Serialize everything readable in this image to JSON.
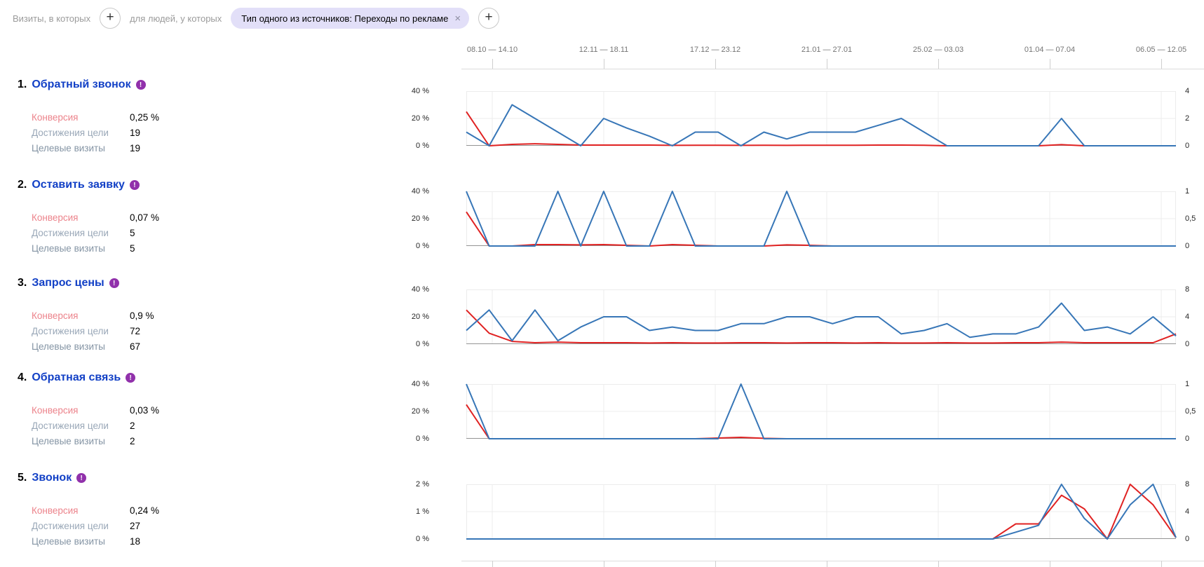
{
  "filter_bar": {
    "visits_prefix": "Визиты, в которых",
    "people_prefix": "для людей, у которых",
    "add_button": "+",
    "chip": {
      "text": "Тип одного из источников: Переходы по рекламе",
      "close": "×"
    }
  },
  "date_axis": {
    "labels": [
      "08.10 — 14.10",
      "12.11 — 18.11",
      "17.12 — 23.12",
      "21.01 — 27.01",
      "25.02 — 03.03",
      "01.04 — 07.04",
      "06.05 — 12.05"
    ]
  },
  "goals": [
    {
      "num": "1.",
      "title": "Обратный звонок",
      "info": "!",
      "conversion_label": "Конверсия",
      "conversion": "0,25 %",
      "reaches_label": "Достижения цели",
      "reaches": "19",
      "visits_label": "Целевые визиты",
      "visits": "19",
      "y_left": [
        "40 %",
        "20 %",
        "0 %"
      ],
      "y_right": [
        "4",
        "2",
        "0"
      ]
    },
    {
      "num": "2.",
      "title": "Оставить заявку",
      "info": "!",
      "conversion_label": "Конверсия",
      "conversion": "0,07 %",
      "reaches_label": "Достижения цели",
      "reaches": "5",
      "visits_label": "Целевые визиты",
      "visits": "5",
      "y_left": [
        "40 %",
        "20 %",
        "0 %"
      ],
      "y_right": [
        "1",
        "0,5",
        "0"
      ]
    },
    {
      "num": "3.",
      "title": "Запрос цены",
      "info": "!",
      "conversion_label": "Конверсия",
      "conversion": "0,9 %",
      "reaches_label": "Достижения цели",
      "reaches": "72",
      "visits_label": "Целевые визиты",
      "visits": "67",
      "y_left": [
        "40 %",
        "20 %",
        "0 %"
      ],
      "y_right": [
        "8",
        "4",
        "0"
      ]
    },
    {
      "num": "4.",
      "title": "Обратная связь",
      "info": "!",
      "conversion_label": "Конверсия",
      "conversion": "0,03 %",
      "reaches_label": "Достижения цели",
      "reaches": "2",
      "visits_label": "Целевые визиты",
      "visits": "2",
      "y_left": [
        "40 %",
        "20 %",
        "0 %"
      ],
      "y_right": [
        "1",
        "0,5",
        "0"
      ]
    },
    {
      "num": "5.",
      "title": "Звонок",
      "info": "!",
      "conversion_label": "Конверсия",
      "conversion": "0,24 %",
      "reaches_label": "Достижения цели",
      "reaches": "27",
      "visits_label": "Целевые визиты",
      "visits": "18",
      "y_left": [
        "2 %",
        "1 %",
        "0 %"
      ],
      "y_right": [
        "8",
        "4",
        "0"
      ]
    }
  ],
  "colors": {
    "conversion_line": "#e02222",
    "reaches_line": "#3776b7",
    "goal_link": "#1240c6",
    "info_icon": "#9131ab",
    "chip_bg": "#e2dff8"
  },
  "chart_data": [
    {
      "type": "line",
      "title": "Обратный звонок",
      "x_tick_labels": [
        "08.10 — 14.10",
        "12.11 — 18.11",
        "17.12 — 23.12",
        "21.01 — 27.01",
        "25.02 — 03.03",
        "01.04 — 07.04",
        "06.05 — 12.05"
      ],
      "y_left_axis": {
        "ticks": [
          "40 %",
          "20 %",
          "0 %"
        ],
        "max": 40
      },
      "y_right_axis": {
        "ticks": [
          "4",
          "2",
          "0"
        ],
        "max": 4
      },
      "series": [
        {
          "name": "Конверсия",
          "axis": "left",
          "max": 40,
          "color": "#e02222",
          "values": [
            25,
            0,
            1,
            1.5,
            1,
            0.5,
            0.5,
            0.5,
            0.5,
            0.3,
            0.4,
            0.4,
            0.3,
            0.4,
            0.3,
            0.4,
            0.4,
            0.4,
            0.5,
            0.5,
            0.4,
            0,
            0,
            0,
            0,
            0,
            0.8,
            0,
            0,
            0,
            0,
            0
          ]
        },
        {
          "name": "Достижения цели",
          "axis": "right",
          "max": 4,
          "color": "#3776b7",
          "values": [
            1,
            0,
            3,
            2,
            1,
            0,
            2,
            1.3,
            0.7,
            0,
            1,
            1,
            0,
            1,
            0.5,
            1,
            1,
            1,
            1.5,
            2,
            1,
            0,
            0,
            0,
            0,
            0,
            2,
            0,
            0,
            0,
            0,
            0
          ]
        }
      ]
    },
    {
      "type": "line",
      "title": "Оставить заявку",
      "x_tick_labels": [
        "08.10 — 14.10",
        "12.11 — 18.11",
        "17.12 — 23.12",
        "21.01 — 27.01",
        "25.02 — 03.03",
        "01.04 — 07.04",
        "06.05 — 12.05"
      ],
      "y_left_axis": {
        "ticks": [
          "40 %",
          "20 %",
          "0 %"
        ],
        "max": 40
      },
      "y_right_axis": {
        "ticks": [
          "1",
          "0,5",
          "0"
        ],
        "max": 1
      },
      "series": [
        {
          "name": "Конверсия",
          "axis": "left",
          "max": 40,
          "color": "#e02222",
          "values": [
            25,
            0,
            0,
            1,
            1,
            0.8,
            1,
            0.5,
            0,
            1,
            0.5,
            0,
            0,
            0,
            0.8,
            0.5,
            0,
            0,
            0,
            0,
            0,
            0,
            0,
            0,
            0,
            0,
            0,
            0,
            0,
            0,
            0,
            0
          ]
        },
        {
          "name": "Достижения цели",
          "axis": "right",
          "max": 1,
          "color": "#3776b7",
          "values": [
            1,
            0,
            0,
            0,
            1,
            0,
            1,
            0,
            0,
            1,
            0,
            0,
            0,
            0,
            1,
            0,
            0,
            0,
            0,
            0,
            0,
            0,
            0,
            0,
            0,
            0,
            0,
            0,
            0,
            0,
            0,
            0
          ]
        }
      ]
    },
    {
      "type": "line",
      "title": "Запрос цены",
      "x_tick_labels": [
        "08.10 — 14.10",
        "12.11 — 18.11",
        "17.12 — 23.12",
        "21.01 — 27.01",
        "25.02 — 03.03",
        "01.04 — 07.04",
        "06.05 — 12.05"
      ],
      "y_left_axis": {
        "ticks": [
          "40 %",
          "20 %",
          "0 %"
        ],
        "max": 40
      },
      "y_right_axis": {
        "ticks": [
          "8",
          "4",
          "0"
        ],
        "max": 8
      },
      "series": [
        {
          "name": "Конверсия",
          "axis": "left",
          "max": 40,
          "color": "#e02222",
          "values": [
            25,
            8,
            2,
            1,
            1.5,
            1,
            1,
            1,
            0.8,
            1,
            0.8,
            0.8,
            1,
            1,
            0.8,
            1,
            1,
            0.8,
            1,
            0.8,
            0.8,
            1,
            0.8,
            0.8,
            1,
            1,
            1.5,
            1,
            1,
            1,
            1,
            7.5
          ]
        },
        {
          "name": "Достижения цели",
          "axis": "right",
          "max": 8,
          "color": "#3776b7",
          "values": [
            2,
            5,
            0.5,
            5,
            0.5,
            2.5,
            4,
            4,
            2,
            2.5,
            2,
            2,
            3,
            3,
            4,
            4,
            3,
            4,
            4,
            1.5,
            2,
            3,
            1,
            1.5,
            1.5,
            2.5,
            6,
            2,
            2.5,
            1.5,
            4,
            1.2
          ]
        }
      ]
    },
    {
      "type": "line",
      "title": "Обратная связь",
      "x_tick_labels": [
        "08.10 — 14.10",
        "12.11 — 18.11",
        "17.12 — 23.12",
        "21.01 — 27.01",
        "25.02 — 03.03",
        "01.04 — 07.04",
        "06.05 — 12.05"
      ],
      "y_left_axis": {
        "ticks": [
          "40 %",
          "20 %",
          "0 %"
        ],
        "max": 40
      },
      "y_right_axis": {
        "ticks": [
          "1",
          "0,5",
          "0"
        ],
        "max": 1
      },
      "series": [
        {
          "name": "Конверсия",
          "axis": "left",
          "max": 40,
          "color": "#e02222",
          "values": [
            25,
            0,
            0,
            0,
            0,
            0,
            0,
            0,
            0,
            0,
            0,
            0.5,
            1,
            0.3,
            0,
            0,
            0,
            0,
            0,
            0,
            0,
            0,
            0,
            0,
            0,
            0,
            0,
            0,
            0,
            0,
            0,
            0
          ]
        },
        {
          "name": "Достижения цели",
          "axis": "right",
          "max": 1,
          "color": "#3776b7",
          "values": [
            1,
            0,
            0,
            0,
            0,
            0,
            0,
            0,
            0,
            0,
            0,
            0,
            1,
            0,
            0,
            0,
            0,
            0,
            0,
            0,
            0,
            0,
            0,
            0,
            0,
            0,
            0,
            0,
            0,
            0,
            0,
            0
          ]
        }
      ]
    },
    {
      "type": "line",
      "title": "Звонок",
      "x_tick_labels": [
        "08.10 — 14.10",
        "12.11 — 18.11",
        "17.12 — 23.12",
        "21.01 — 27.01",
        "25.02 — 03.03",
        "01.04 — 07.04",
        "06.05 — 12.05"
      ],
      "y_left_axis": {
        "ticks": [
          "2 %",
          "1 %",
          "0 %"
        ],
        "max": 2
      },
      "y_right_axis": {
        "ticks": [
          "8",
          "4",
          "0"
        ],
        "max": 8
      },
      "series": [
        {
          "name": "Конверсия",
          "axis": "left",
          "max": 2,
          "color": "#e02222",
          "values": [
            0,
            0,
            0,
            0,
            0,
            0,
            0,
            0,
            0,
            0,
            0,
            0,
            0,
            0,
            0,
            0,
            0,
            0,
            0,
            0,
            0,
            0,
            0,
            0,
            0.55,
            0.55,
            1.6,
            1.1,
            0,
            2,
            1.25,
            0.05
          ]
        },
        {
          "name": "Достижения цели",
          "axis": "right",
          "max": 8,
          "color": "#3776b7",
          "values": [
            0,
            0,
            0,
            0,
            0,
            0,
            0,
            0,
            0,
            0,
            0,
            0,
            0,
            0,
            0,
            0,
            0,
            0,
            0,
            0,
            0,
            0,
            0,
            0,
            1,
            2,
            8,
            3,
            0,
            5,
            8,
            0.2
          ]
        }
      ]
    }
  ]
}
